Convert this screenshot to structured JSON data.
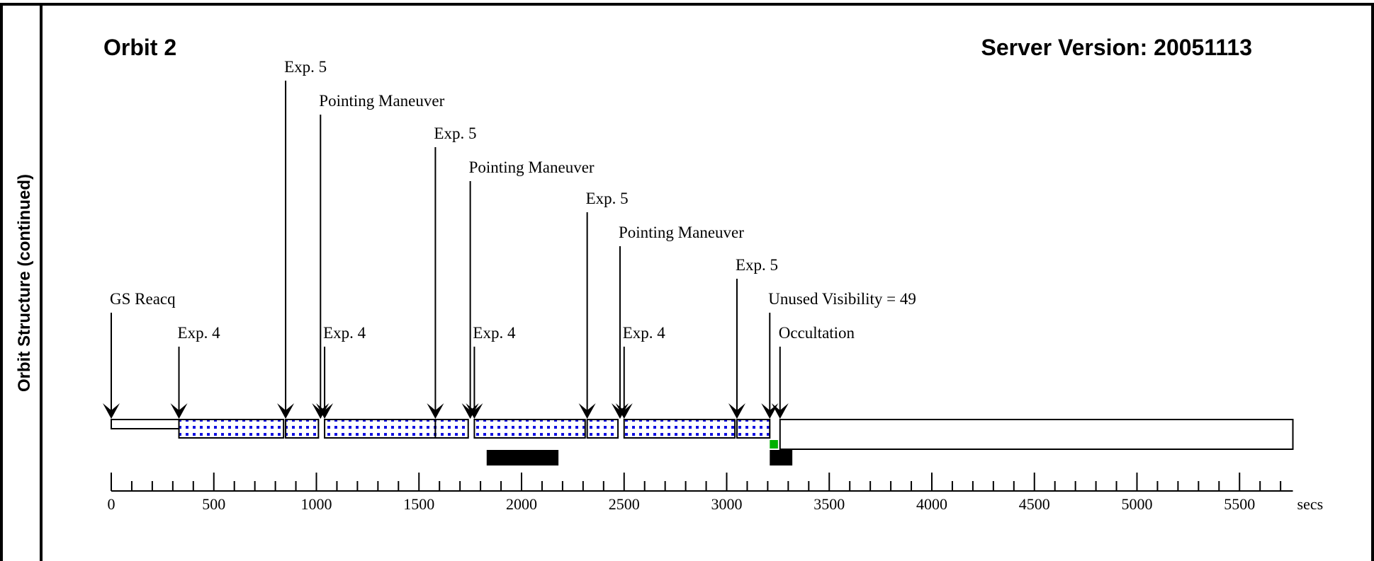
{
  "side_title": "Orbit Structure (continued)",
  "header": {
    "orbit": "Orbit 2",
    "server_version": "Server Version: 20051113"
  },
  "colors": {
    "exposure_fill": "#1010e0",
    "visibility_marker": "#00b000",
    "occultation_bar": "#000000"
  },
  "axis": {
    "unit": "secs",
    "ticks": [
      0,
      500,
      1000,
      1500,
      2000,
      2500,
      3000,
      3500,
      4000,
      4500,
      5000,
      5500
    ],
    "minor_step": 100,
    "max": 5760
  },
  "events": [
    {
      "label": "GS Reacq",
      "t": 0
    },
    {
      "label": "Exp. 4",
      "t": 330
    },
    {
      "label": "Exp. 5",
      "t": 850
    },
    {
      "label": "Pointing Maneuver",
      "t": 1020
    },
    {
      "label": "Exp. 4",
      "t": 1040
    },
    {
      "label": "Exp. 5",
      "t": 1580
    },
    {
      "label": "Pointing Maneuver",
      "t": 1750
    },
    {
      "label": "Exp. 4",
      "t": 1770
    },
    {
      "label": "Exp. 5",
      "t": 2320
    },
    {
      "label": "Pointing Maneuver",
      "t": 2480
    },
    {
      "label": "Exp. 4",
      "t": 2500
    },
    {
      "label": "Exp. 5",
      "t": 3050
    },
    {
      "label": "Unused Visibility = 49",
      "t": 3210
    },
    {
      "label": "Occultation",
      "t": 3260
    }
  ],
  "segments": [
    {
      "type": "idle",
      "start": 0,
      "end": 330
    },
    {
      "type": "exposure",
      "start": 330,
      "end": 840
    },
    {
      "type": "exposure",
      "start": 850,
      "end": 1010
    },
    {
      "type": "exposure",
      "start": 1040,
      "end": 1580
    },
    {
      "type": "exposure",
      "start": 1580,
      "end": 1740
    },
    {
      "type": "exposure",
      "start": 1770,
      "end": 2310
    },
    {
      "type": "exposure",
      "start": 2320,
      "end": 2470
    },
    {
      "type": "exposure",
      "start": 2500,
      "end": 3040
    },
    {
      "type": "exposure",
      "start": 3050,
      "end": 3210
    },
    {
      "type": "occultation",
      "start": 3260,
      "end": 5760
    }
  ],
  "black_bars": [
    {
      "start": 1830,
      "end": 2180
    },
    {
      "start": 3210,
      "end": 3320
    }
  ],
  "visibility_marker": {
    "start": 3210,
    "end": 3250
  }
}
